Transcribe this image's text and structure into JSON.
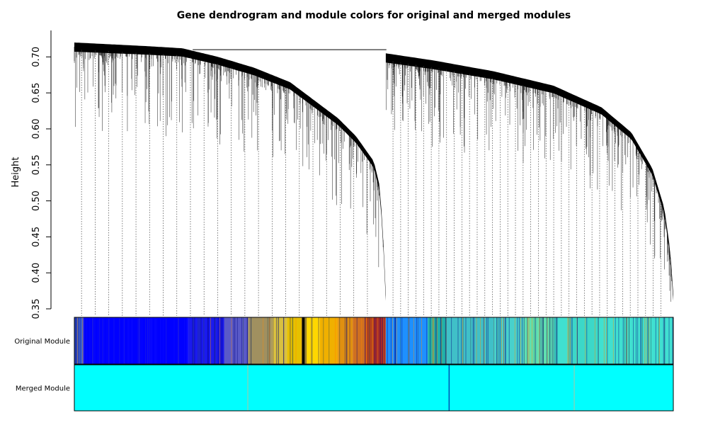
{
  "chart_data": {
    "type": "dendrogram",
    "title": "Gene dendrogram and module colors for original and merged modules",
    "xlabel": "",
    "ylabel": "Height",
    "ylim": [
      0.35,
      0.72
    ],
    "yticks": [
      "0.35",
      "0.40",
      "0.45",
      "0.50",
      "0.55",
      "0.60",
      "0.65",
      "0.70"
    ],
    "root_height": 0.71,
    "clusters": [
      {
        "x_range": [
          0.0,
          0.52
        ],
        "plateau_height": 0.715,
        "end_height": 0.37,
        "profile": [
          [
            0.0,
            0.72
          ],
          [
            0.12,
            0.715
          ],
          [
            0.18,
            0.712
          ],
          [
            0.24,
            0.7
          ],
          [
            0.3,
            0.685
          ],
          [
            0.36,
            0.665
          ],
          [
            0.4,
            0.64
          ],
          [
            0.44,
            0.615
          ],
          [
            0.47,
            0.59
          ],
          [
            0.5,
            0.555
          ],
          [
            0.51,
            0.52
          ],
          [
            0.515,
            0.46
          ],
          [
            0.52,
            0.37
          ]
        ]
      },
      {
        "x_range": [
          0.52,
          1.0
        ],
        "plateau_height": 0.71,
        "end_height": 0.37,
        "profile": [
          [
            0.52,
            0.705
          ],
          [
            0.6,
            0.695
          ],
          [
            0.7,
            0.68
          ],
          [
            0.8,
            0.66
          ],
          [
            0.88,
            0.63
          ],
          [
            0.93,
            0.595
          ],
          [
            0.965,
            0.545
          ],
          [
            0.985,
            0.49
          ],
          [
            0.995,
            0.43
          ],
          [
            1.0,
            0.37
          ]
        ]
      }
    ],
    "color_bands": [
      {
        "name": "Original Module",
        "segments": [
          {
            "start": 0.0,
            "end": 0.015,
            "color": "#3a5fcd"
          },
          {
            "start": 0.015,
            "end": 0.19,
            "color": "#0000ff"
          },
          {
            "start": 0.19,
            "end": 0.25,
            "color": "#1a1aee"
          },
          {
            "start": 0.25,
            "end": 0.29,
            "color": "#5a5ac8"
          },
          {
            "start": 0.29,
            "end": 0.33,
            "color": "#a09060"
          },
          {
            "start": 0.33,
            "end": 0.355,
            "color": "#d8c040"
          },
          {
            "start": 0.355,
            "end": 0.38,
            "color": "#e6c000"
          },
          {
            "start": 0.38,
            "end": 0.385,
            "color": "#000000"
          },
          {
            "start": 0.385,
            "end": 0.41,
            "color": "#ffd700"
          },
          {
            "start": 0.41,
            "end": 0.44,
            "color": "#f0b000"
          },
          {
            "start": 0.44,
            "end": 0.465,
            "color": "#e09010"
          },
          {
            "start": 0.465,
            "end": 0.485,
            "color": "#d07020"
          },
          {
            "start": 0.485,
            "end": 0.5,
            "color": "#b04020"
          },
          {
            "start": 0.5,
            "end": 0.52,
            "color": "#a52a2a"
          },
          {
            "start": 0.52,
            "end": 0.59,
            "color": "#1e90ff"
          },
          {
            "start": 0.59,
            "end": 0.62,
            "color": "#20b2aa"
          },
          {
            "start": 0.62,
            "end": 0.7,
            "color": "#40c0c8"
          },
          {
            "start": 0.7,
            "end": 0.75,
            "color": "#48d1cc"
          },
          {
            "start": 0.75,
            "end": 0.8,
            "color": "#60e0b0"
          },
          {
            "start": 0.8,
            "end": 0.83,
            "color": "#40e0d0"
          },
          {
            "start": 0.83,
            "end": 0.875,
            "color": "#3cd8c8"
          },
          {
            "start": 0.875,
            "end": 1.0,
            "color": "#40e0d0"
          }
        ]
      },
      {
        "name": "Merged Module",
        "segments": [
          {
            "start": 0.0,
            "end": 1.0,
            "color": "#00ffff"
          }
        ],
        "markers": [
          0.289,
          0.625,
          0.834
        ]
      }
    ]
  }
}
